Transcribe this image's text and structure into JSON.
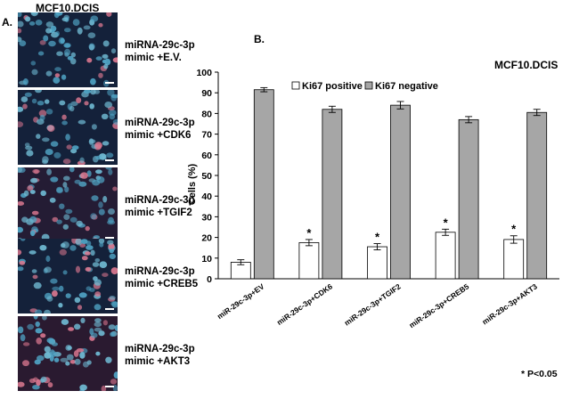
{
  "left_panel": {
    "title": "MCF10.DCIS",
    "label": "A.",
    "images": [
      {
        "line1": "miRNA-29c-3p",
        "line2": "mimic +E.V."
      },
      {
        "line1": "miRNA-29c-3p",
        "line2": "mimic +CDK6"
      },
      {
        "line1": "miRNA-29c-3p",
        "line2": "mimic +TGIF2"
      },
      {
        "line1": "miRNA-29c-3p",
        "line2": "mimic +CREB5"
      },
      {
        "line1": "miRNA-29c-3p",
        "line2": "mimic +AKT3"
      }
    ]
  },
  "chart_data": {
    "type": "bar",
    "panel_label": "B.",
    "title": "MCF10.DCIS",
    "ylabel": "Cells (%)",
    "xlabel": "",
    "ylim": [
      0,
      100
    ],
    "yticks": [
      0,
      10,
      20,
      30,
      40,
      50,
      60,
      70,
      80,
      90,
      100
    ],
    "categories": [
      "miR-29c-3p+EV",
      "miR-29c-3p+CDK6",
      "miR-29c-3p+TGIF2",
      "miR-29c-3p+CREB5",
      "miR-29c-3p+AKT3"
    ],
    "series": [
      {
        "name": "Ki67 positive",
        "color": "#ffffff",
        "values": [
          8,
          17.5,
          15.5,
          22.5,
          19
        ],
        "errors": [
          1.2,
          1.5,
          1.5,
          1.5,
          1.8
        ]
      },
      {
        "name": "Ki67  negative",
        "color": "#a6a6a6",
        "values": [
          91.5,
          82,
          84,
          77,
          80.5
        ],
        "errors": [
          1.0,
          1.5,
          1.8,
          1.5,
          1.5
        ]
      }
    ],
    "significance": [
      false,
      true,
      true,
      true,
      true
    ],
    "significance_mark": "*",
    "legend": "top",
    "note": "* P<0.05"
  }
}
